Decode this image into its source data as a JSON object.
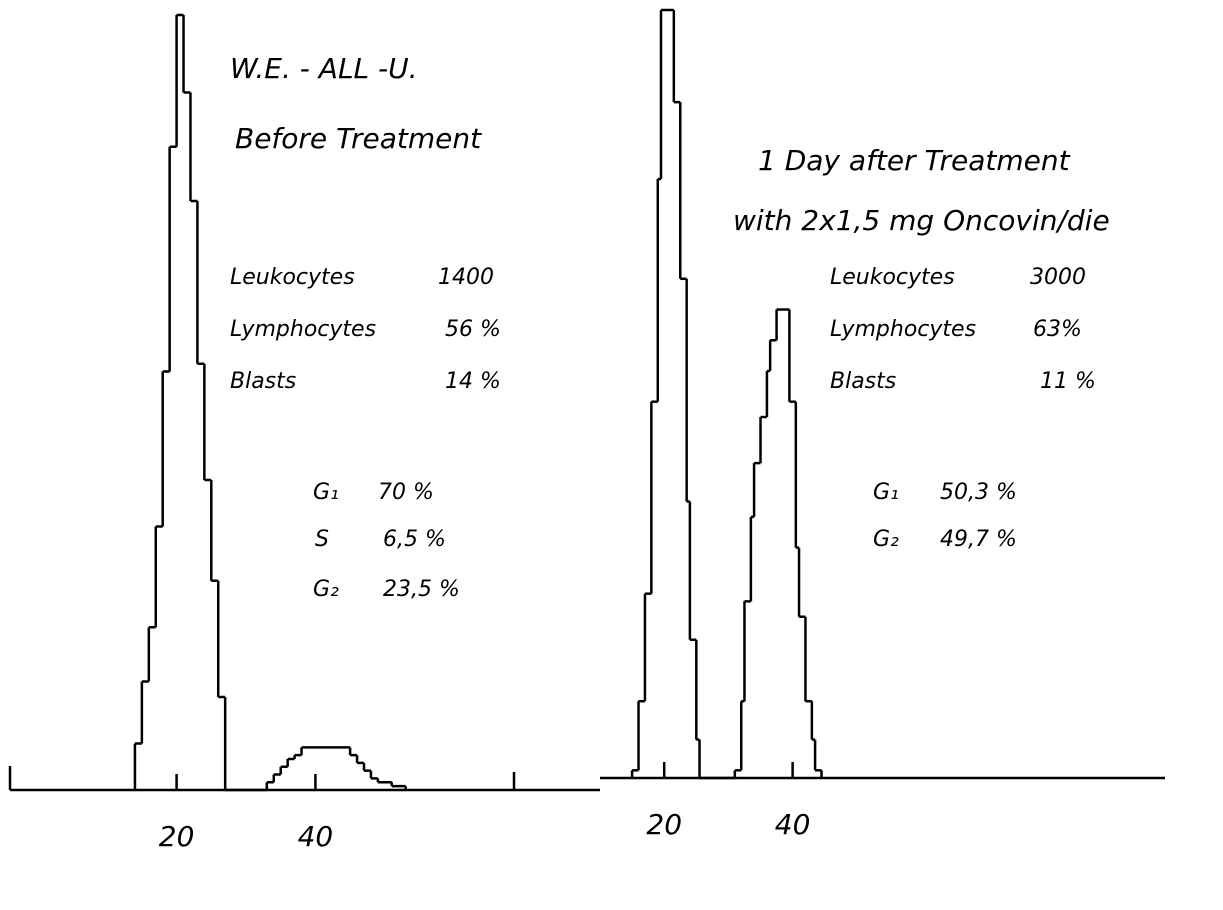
{
  "chart_data": [
    {
      "type": "histogram",
      "color": "#000000",
      "bins": [
        14,
        15,
        16,
        17,
        18,
        19,
        20,
        21,
        22,
        23,
        24,
        25,
        26,
        27,
        33,
        34,
        35,
        36,
        37,
        38,
        45,
        46,
        47,
        48,
        49,
        51,
        53
      ],
      "values": [
        6,
        14,
        21,
        34,
        54,
        83,
        100,
        90,
        76,
        55,
        40,
        27,
        12,
        0,
        1,
        2,
        3,
        4,
        4.5,
        5.5,
        4.5,
        3.5,
        2.5,
        1.5,
        1,
        0.5
      ],
      "xlim": [
        -4,
        81
      ],
      "ylim": [
        0,
        100
      ],
      "xticks": [
        20,
        40
      ],
      "annotations": [
        "W.E. - ALL -U.",
        "Before Treatment",
        "Leukocytes",
        "1400",
        "Lymphocytes",
        "56 %",
        "Blasts",
        "14 %",
        "G₁",
        "70 %",
        "S",
        "6,5 %",
        "G₂",
        "23,5 %"
      ]
    },
    {
      "type": "histogram",
      "color": "#000000",
      "bins": [
        15,
        16,
        17,
        18,
        19,
        19.5,
        21.5,
        22.5,
        23.5,
        24,
        25,
        25.5,
        31,
        32,
        32.5,
        33.5,
        34,
        35,
        36,
        36.5,
        37.5,
        39.5,
        40.5,
        41,
        42,
        43,
        43.5,
        44.5
      ],
      "values": [
        1,
        10,
        24,
        49,
        78,
        100,
        88,
        65,
        36,
        18,
        5,
        0,
        1,
        10,
        23,
        34,
        41,
        47,
        53,
        57,
        61,
        49,
        30,
        21,
        10,
        5,
        1
      ],
      "xlim": [
        10,
        98
      ],
      "ylim": [
        0,
        100
      ],
      "xticks": [
        20,
        40
      ],
      "annotations": [
        "1 Day after Treatment",
        "with 2x1,5 mg Oncovin/die",
        "Leukocytes",
        "3000",
        "Lymphocytes",
        "63%",
        "Blasts",
        "11 %",
        "G₁",
        "50,3 %",
        "G₂",
        "49,7 %"
      ]
    }
  ]
}
